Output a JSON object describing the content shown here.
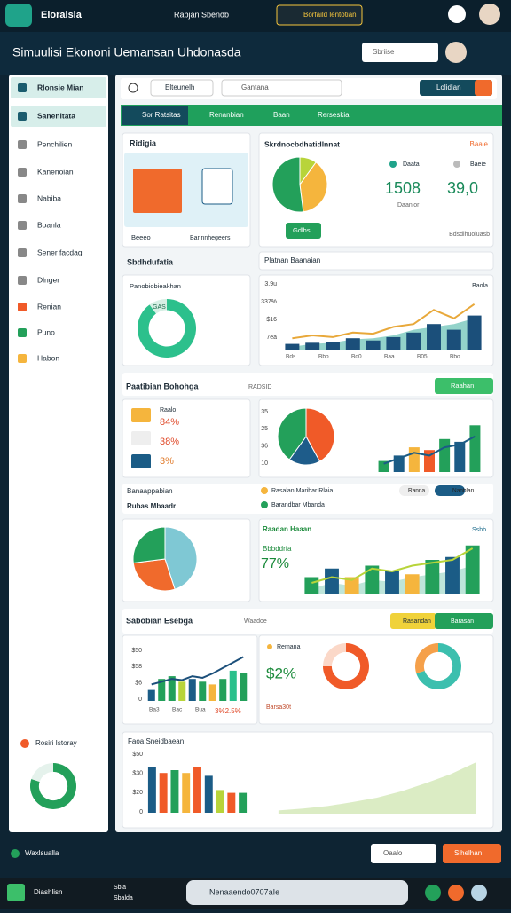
{
  "topbar": {
    "brand": "Eloraisia",
    "center": "Rabjan Sbendb",
    "button": "Borfaild lentotian"
  },
  "header": {
    "title": "Simuulisi Ekononi Uemansan Uhdonasda",
    "search": "Sbriise"
  },
  "sidebar": {
    "items": [
      "Rlonsie Mian",
      "Sanenitata",
      "Penchilien",
      "Kanenoian",
      "Nabiba",
      "Boanla",
      "Sener facdag",
      "Dlnger",
      "Renian",
      "Puno",
      "Habon"
    ],
    "widget": "Rosiri Istoray"
  },
  "toolbar": {
    "search1": "Elteunelh",
    "search2": "Gantana",
    "button": "Lolidian",
    "tabs": [
      "Sor Ratsitas",
      "Renanbian",
      "Baan",
      "Rerseskia"
    ]
  },
  "card1": {
    "title": "Ridigia",
    "tags": [
      "Beeeo",
      "Bannnhegeers"
    ]
  },
  "card2": {
    "title": "Skrdnocbdhatidlnnat",
    "badge": "Baaie",
    "legend": [
      "Daata",
      "Baeie"
    ],
    "stat1": "1508",
    "stat2": "39,0",
    "note": "Daanior",
    "button": "Gdlhs",
    "footer": "Bdsdlhuoluasb"
  },
  "section1": {
    "title": "Sbdhdufatia",
    "right_title": "Platnan Baanaian",
    "donut_title": "Panobiobieakhan",
    "donut_label": "GAS",
    "axis": [
      "3.9u",
      "337%",
      "$16",
      "7ea"
    ],
    "xlabels": [
      "Bds",
      "Bbo",
      "Bd0",
      "Baa",
      "B05",
      "Bbo"
    ],
    "corner": "Baola"
  },
  "section2": {
    "title": "Paatibian Bohohga",
    "tag": "RADSID",
    "button": "Raahan",
    "item_label": "Raalo",
    "items": [
      "84%",
      "38%",
      "3%"
    ],
    "axis": [
      "35",
      "25",
      "36",
      "10"
    ]
  },
  "section3": {
    "title": "Banaappabian",
    "subtitle": "Rubas Mbaadr",
    "legend": [
      "Rasalan Maribar Rlaia",
      "Barandbar Mbanda"
    ],
    "pills": [
      "Ranna",
      "Nanblan"
    ],
    "chart_title": "Raadan Haaan",
    "small": "Bbbddrfa",
    "percent": "77%",
    "corner": "Ssbb"
  },
  "section4": {
    "title": "Sabobian Esebga",
    "tag": "Waadoe",
    "button1": "Rasandan",
    "button2": "Barasan",
    "axis": [
      "$50",
      "$58",
      "$6",
      "0"
    ],
    "xlabels": [
      "Ba3",
      "Bac",
      "Bua"
    ],
    "caption": "3%2.5%",
    "mid_tag": "Remana",
    "mid_value": "$2%",
    "mid_sub": "Barsa30t"
  },
  "section5": {
    "title": "Faoa Sneidbaean",
    "axis": [
      "$50",
      "$30",
      "$20",
      "0"
    ]
  },
  "footer": {
    "left": "Waxlsualla",
    "button1": "Oaalo",
    "button2": "Sihelhan"
  },
  "taskbar": {
    "items": [
      "Diashlisn",
      "Sbla",
      "Sbalda",
      "Nenaaendo0707aIe"
    ]
  },
  "charts": {
    "share_pie": {
      "type": "pie",
      "values": [
        10,
        38,
        52
      ],
      "colors": [
        "#b8d43a",
        "#f5b53d",
        "#23a05a"
      ]
    },
    "progress_donut": {
      "type": "donut",
      "values": [
        90,
        10
      ],
      "colors": [
        "#2cc08c",
        "#d6efe4"
      ]
    },
    "trend": {
      "type": "combo",
      "ylim": [
        0,
        100
      ],
      "bars": [
        10,
        12,
        14,
        20,
        16,
        22,
        30,
        45,
        35,
        60
      ],
      "line": [
        20,
        25,
        22,
        30,
        28,
        40,
        45,
        70,
        55,
        80
      ],
      "area": [
        5,
        10,
        12,
        18,
        20,
        25,
        35,
        40,
        45,
        55
      ],
      "colors": {
        "bar": "#1b4f7a",
        "line": "#e8a83a",
        "area": "#6fc4b8"
      }
    },
    "split_pie": {
      "type": "pie",
      "values": [
        42,
        18,
        40
      ],
      "colors": [
        "#f05a28",
        "#1e5c8a",
        "#23a05a"
      ]
    },
    "growth_bars": {
      "type": "combo",
      "ylim": [
        0,
        100
      ],
      "bars": [
        20,
        30,
        45,
        40,
        60,
        55,
        85
      ],
      "line": [
        15,
        25,
        35,
        30,
        45,
        50,
        65
      ],
      "colors": {
        "bar": [
          "#23a05a",
          "#1b5c86",
          "#f5b53d",
          "#f05a28",
          "#23a05a",
          "#1b5c86",
          "#23a05a"
        ],
        "line": "#1b5c86"
      }
    },
    "mix_pie": {
      "type": "pie",
      "values": [
        45,
        28,
        27
      ],
      "colors": [
        "#7fc8d4",
        "#f06a2c",
        "#23a05a"
      ]
    },
    "rise": {
      "type": "combo",
      "ylim": [
        0,
        100
      ],
      "bars": [
        30,
        45,
        30,
        50,
        40,
        35,
        60,
        65,
        85
      ],
      "line": [
        20,
        30,
        25,
        45,
        40,
        50,
        55,
        60,
        80
      ],
      "area": [
        10,
        20,
        15,
        25,
        22,
        30,
        35,
        40,
        50
      ],
      "colors": {
        "bar": [
          "#23a05a",
          "#1b5c86",
          "#f5b53d",
          "#23a05a",
          "#1b5c86",
          "#f5b53d",
          "#23a05a",
          "#1b5c86",
          "#23a05a"
        ],
        "line": "#b8d43a",
        "area": "#a8dccd"
      }
    },
    "bars_line": {
      "type": "combo",
      "ylim": [
        0,
        100
      ],
      "bars": [
        20,
        40,
        45,
        35,
        40,
        35,
        30,
        40,
        55,
        50
      ],
      "line": [
        30,
        35,
        40,
        38,
        45,
        42,
        50,
        60,
        70,
        80
      ],
      "colors": {
        "bar": [
          "#1b5c86",
          "#23a05a",
          "#23a05a",
          "#b8d43a",
          "#1b5c86",
          "#23a05a",
          "#f5b53d",
          "#23a05a",
          "#2cc08c",
          "#23a05a"
        ],
        "line": "#1b4f7a"
      }
    },
    "ring1": {
      "type": "donut",
      "values": [
        75,
        25
      ],
      "colors": [
        "#f05a28",
        "#fbd8c8"
      ]
    },
    "ring2": {
      "type": "donut",
      "values": [
        70,
        30
      ],
      "colors": [
        "#3cbfae",
        "#f5a04a"
      ]
    },
    "bars_final": {
      "type": "combo",
      "ylim": [
        0,
        100
      ],
      "bars": [
        80,
        70,
        75,
        70,
        80,
        65,
        40,
        35,
        35
      ],
      "colors": {
        "bar": [
          "#1b5c86",
          "#f05a28",
          "#23a05a",
          "#f5b53d",
          "#f05a28",
          "#1b5c86",
          "#b8d43a",
          "#f05a28",
          "#23a05a"
        ]
      }
    },
    "area_final": {
      "type": "area",
      "ylim": [
        0,
        100
      ],
      "values": [
        5,
        8,
        12,
        18,
        25,
        35,
        48,
        62,
        80
      ],
      "color": "#cfe6b0"
    },
    "side_donut": {
      "type": "donut",
      "values": [
        80,
        20
      ],
      "colors": [
        "#23a05a",
        "#e5f2ec"
      ]
    }
  }
}
